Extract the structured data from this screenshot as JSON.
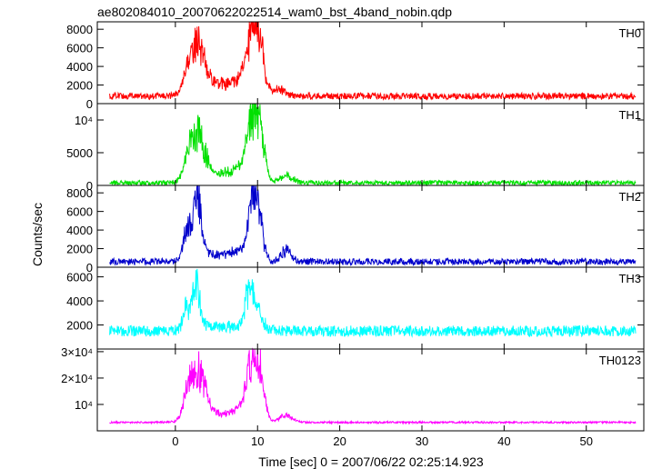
{
  "chart_data": {
    "type": "line",
    "title": "ae802084010_20070622022514_wam0_bst_4band_nobin.qdp",
    "xlabel": "Time [sec] 0 = 2007/06/22 02:25:14.923",
    "ylabel": "Counts/sec",
    "xlim": [
      -9.5,
      57
    ],
    "x_ticks": [
      0,
      10,
      20,
      30,
      40,
      50
    ],
    "x_tick_labels": [
      "0",
      "10",
      "20",
      "30",
      "40",
      "50"
    ],
    "grid": false,
    "legend": "none",
    "sample_step": 0.05,
    "panels": [
      {
        "name": "TH0",
        "color": "#ff0000",
        "ylim": [
          0,
          8800
        ],
        "y_ticks": [
          0,
          2000,
          4000,
          6000,
          8000
        ],
        "y_tick_labels": [
          "0",
          "2000",
          "4000",
          "6000",
          "8000"
        ],
        "baseline": 800,
        "noise": 350,
        "peaks": [
          [
            2.7,
            4800,
            0.9
          ],
          [
            1.5,
            1500,
            0.5
          ],
          [
            9.5,
            6500,
            0.7
          ],
          [
            8.5,
            1200,
            1.2
          ],
          [
            10.5,
            2500,
            0.5
          ],
          [
            5.5,
            1200,
            2.5
          ],
          [
            12.5,
            700,
            0.8
          ]
        ]
      },
      {
        "name": "TH1",
        "color": "#00e000",
        "ylim": [
          0,
          12500
        ],
        "y_ticks": [
          0,
          5000,
          10000
        ],
        "y_tick_labels": [
          "0",
          "5000",
          "10⁴"
        ],
        "baseline": 400,
        "noise": 350,
        "peaks": [
          [
            2.7,
            6500,
            0.9
          ],
          [
            1.5,
            2200,
            0.5
          ],
          [
            9.5,
            8500,
            0.7
          ],
          [
            8.5,
            1800,
            1.2
          ],
          [
            10.5,
            4000,
            0.5
          ],
          [
            5.5,
            1300,
            2.5
          ],
          [
            13.5,
            1000,
            0.8
          ]
        ]
      },
      {
        "name": "TH2",
        "color": "#0000cc",
        "ylim": [
          0,
          8800
        ],
        "y_ticks": [
          0,
          2000,
          4000,
          6000,
          8000
        ],
        "y_tick_labels": [
          "0",
          "2000",
          "4000",
          "6000",
          "8000"
        ],
        "baseline": 600,
        "noise": 350,
        "peaks": [
          [
            2.6,
            6000,
            0.6
          ],
          [
            1.3,
            2800,
            0.4
          ],
          [
            9.5,
            6800,
            0.5
          ],
          [
            10.3,
            3000,
            0.5
          ],
          [
            8.5,
            1000,
            1.0
          ],
          [
            5.5,
            800,
            2.5
          ],
          [
            13.5,
            1200,
            0.6
          ]
        ]
      },
      {
        "name": "TH3",
        "color": "#00ffff",
        "ylim": [
          0,
          6800
        ],
        "y_ticks": [
          2000,
          4000,
          6000
        ],
        "y_tick_labels": [
          "2000",
          "4000",
          "6000"
        ],
        "baseline": 1500,
        "noise": 450,
        "peaks": [
          [
            2.5,
            3500,
            0.5
          ],
          [
            1.3,
            1800,
            0.4
          ],
          [
            9.0,
            3200,
            0.5
          ],
          [
            10.0,
            1500,
            0.6
          ],
          [
            5.5,
            400,
            2.5
          ]
        ]
      },
      {
        "name": "TH0123",
        "color": "#ff00ff",
        "ylim": [
          0,
          31000
        ],
        "y_ticks": [
          10000,
          20000,
          30000
        ],
        "y_tick_labels": [
          "10⁴",
          "2×10⁴",
          "3×10⁴"
        ],
        "baseline": 3200,
        "noise": 350,
        "peaks": [
          [
            2.7,
            18000,
            0.9
          ],
          [
            1.4,
            6000,
            0.5
          ],
          [
            9.5,
            21000,
            0.7
          ],
          [
            8.5,
            4000,
            1.2
          ],
          [
            10.5,
            9000,
            0.5
          ],
          [
            5.5,
            3000,
            2.5
          ],
          [
            13.5,
            2500,
            0.8
          ]
        ]
      }
    ]
  }
}
